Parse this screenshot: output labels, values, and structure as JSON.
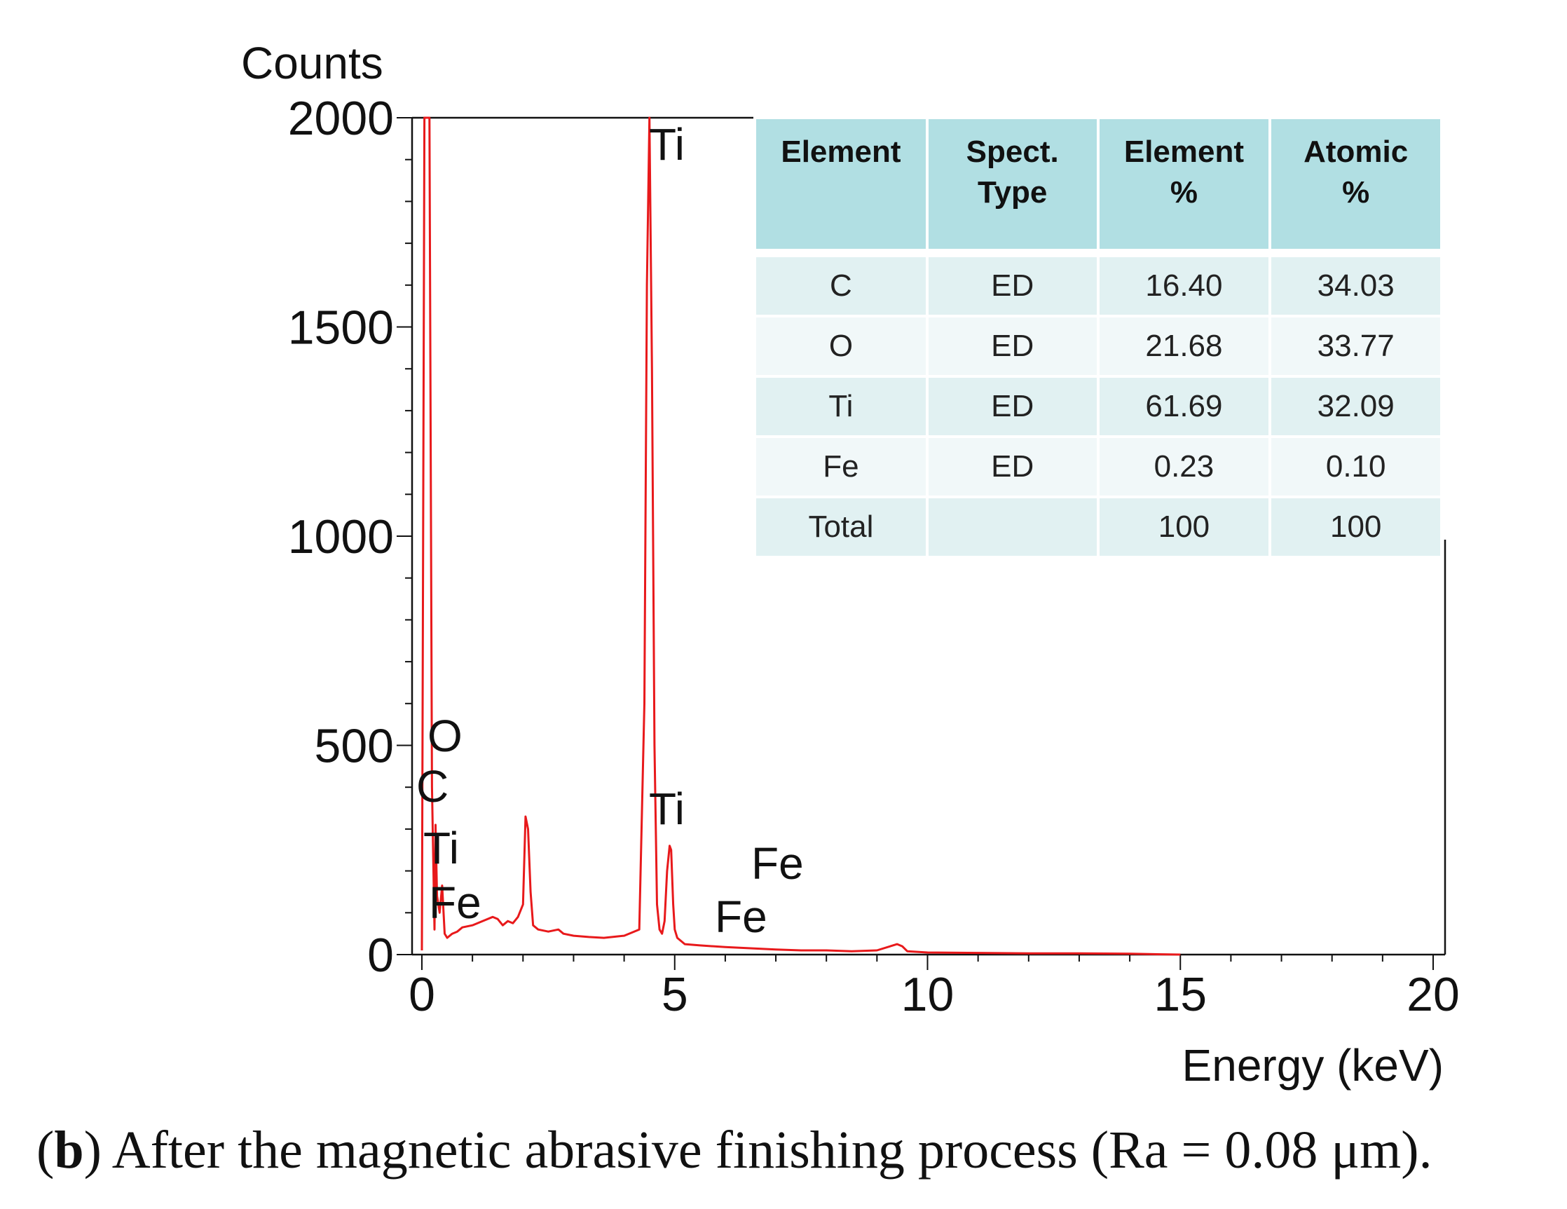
{
  "chart_data": {
    "type": "line",
    "xlabel": "Energy (keV)",
    "ylabel": "Counts",
    "xlim": [
      0,
      20
    ],
    "ylim": [
      0,
      2000
    ],
    "x_ticks": [
      0,
      5,
      10,
      15,
      20
    ],
    "y_ticks": [
      0,
      500,
      1000,
      1500,
      2000
    ],
    "series": [
      {
        "color": "#e8191b",
        "x": [
          0.0,
          0.05,
          0.1,
          0.15,
          0.2,
          0.25,
          0.27,
          0.3,
          0.35,
          0.4,
          0.45,
          0.5,
          0.55,
          0.6,
          0.7,
          0.8,
          1.0,
          1.2,
          1.4,
          1.5,
          1.6,
          1.7,
          1.8,
          1.9,
          2.0,
          2.05,
          2.1,
          2.15,
          2.2,
          2.3,
          2.5,
          2.7,
          2.8,
          3.0,
          3.3,
          3.6,
          4.0,
          4.3,
          4.4,
          4.45,
          4.5,
          4.55,
          4.6,
          4.65,
          4.7,
          4.75,
          4.8,
          4.85,
          4.9,
          4.93,
          4.97,
          5.0,
          5.05,
          5.1,
          5.2,
          5.5,
          6.0,
          6.5,
          7.0,
          7.5,
          8.0,
          8.5,
          9.0,
          9.4,
          9.5,
          9.6,
          10.0,
          11.0,
          12.0,
          13.0,
          14.0,
          15.0
        ],
        "y": [
          10,
          2000,
          2000,
          2000,
          400,
          60,
          310,
          140,
          100,
          165,
          50,
          40,
          45,
          50,
          55,
          65,
          70,
          80,
          90,
          85,
          70,
          80,
          75,
          90,
          120,
          330,
          300,
          150,
          70,
          60,
          55,
          60,
          50,
          45,
          42,
          40,
          45,
          60,
          600,
          1600,
          2000,
          1400,
          500,
          120,
          60,
          50,
          80,
          200,
          260,
          250,
          120,
          60,
          40,
          35,
          25,
          22,
          18,
          15,
          12,
          10,
          10,
          8,
          10,
          25,
          20,
          8,
          5,
          4,
          3,
          3,
          2,
          0
        ]
      }
    ],
    "peak_labels": [
      "Ti",
      "O",
      "C",
      "Ti",
      "Fe",
      "Ti",
      "Fe",
      "Fe"
    ]
  },
  "table": {
    "headers": [
      [
        "Element"
      ],
      [
        "Spect.",
        "Type"
      ],
      [
        "Element",
        "%"
      ],
      [
        "Atomic",
        "%"
      ]
    ],
    "rows": [
      [
        "C",
        "ED",
        "16.40",
        "34.03"
      ],
      [
        "O",
        "ED",
        "21.68",
        "33.77"
      ],
      [
        "Ti",
        "ED",
        "61.69",
        "32.09"
      ],
      [
        "Fe",
        "ED",
        "0.23",
        "0.10"
      ],
      [
        "Total",
        "",
        "100",
        "100"
      ]
    ]
  },
  "caption": {
    "label": "b",
    "text": " After the magnetic abrasive finishing process (Ra = 0.08 μm)."
  }
}
